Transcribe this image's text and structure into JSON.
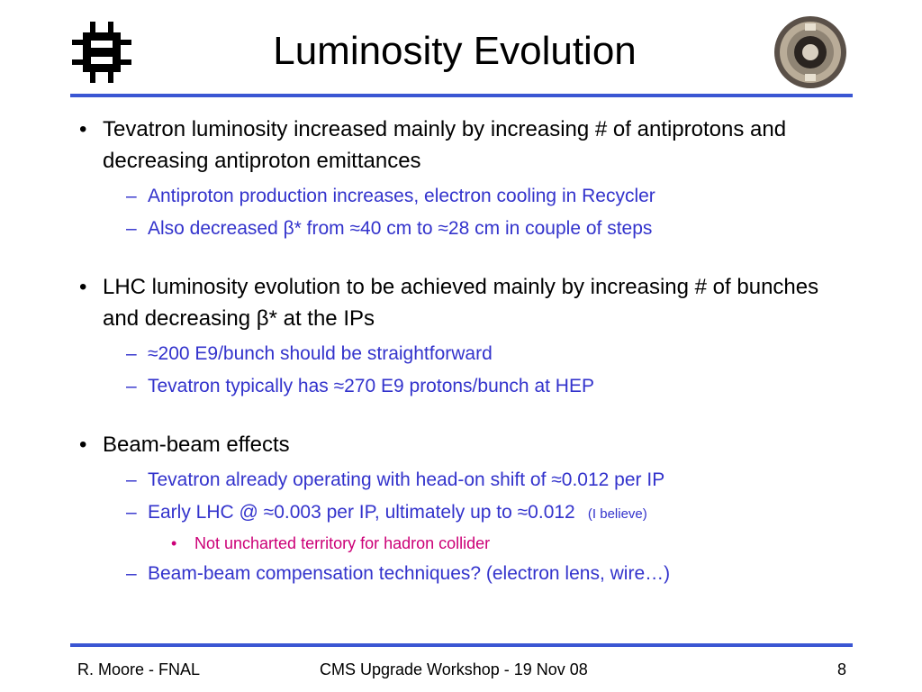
{
  "title": "Luminosity Evolution",
  "logos": {
    "left": "fermilab-logo-icon",
    "right": "beam-pipe-photo-icon"
  },
  "accent_color": "#3a56d3",
  "sub_color": "#3333cc",
  "subsub_color": "#cc0077",
  "bullets": [
    {
      "text": "Tevatron luminosity increased mainly by increasing # of antiprotons and decreasing antiproton emittances",
      "subs": [
        {
          "text": "Antiproton production increases, electron cooling in Recycler"
        },
        {
          "text": "Also decreased β* from ≈40 cm to ≈28 cm in couple of steps"
        }
      ]
    },
    {
      "text": "LHC luminosity evolution to be achieved mainly by increasing # of bunches and decreasing β* at the IPs",
      "subs": [
        {
          "text": "≈200 E9/bunch should be straightforward"
        },
        {
          "text": "Tevatron typically has ≈270 E9 protons/bunch at HEP"
        }
      ]
    },
    {
      "text": "Beam-beam effects",
      "subs": [
        {
          "text": "Tevatron already operating with head-on shift of ≈0.012 per IP"
        },
        {
          "text": "Early LHC @ ≈0.003 per IP, ultimately up to ≈0.012",
          "note": "(I believe)",
          "subs": [
            {
              "text": "Not uncharted territory for hadron collider"
            }
          ]
        },
        {
          "text": "Beam-beam compensation techniques?  (electron lens, wire…)"
        }
      ]
    }
  ],
  "markers": {
    "bullet": "•",
    "dash": "–"
  },
  "footer": {
    "author": "R. Moore - FNAL",
    "event": "CMS Upgrade Workshop - 19 Nov 08",
    "page": "8"
  }
}
